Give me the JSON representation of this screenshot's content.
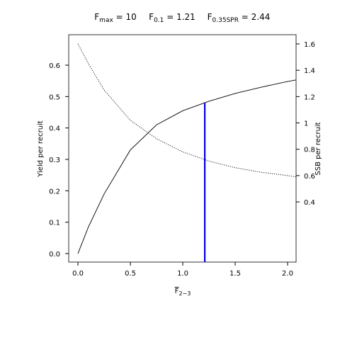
{
  "chart_data": {
    "type": "line",
    "title_items": [
      {
        "main": "F",
        "sub": "max",
        "rest": " = 10"
      },
      {
        "main": "F",
        "sub": "0.1",
        "rest": " = 1.21"
      },
      {
        "main": "F",
        "sub": "0.35SPR",
        "rest": " = 2.44"
      }
    ],
    "xlabel": {
      "main": "F",
      "sub": "2−3"
    },
    "ylabel": "Yield per recruit",
    "y2label": "SSB per recruit",
    "x": [
      0,
      0.1,
      0.25,
      0.5,
      0.75,
      1,
      1.25,
      1.5,
      1.75,
      2,
      2.081
    ],
    "series": [
      {
        "values": [
          0,
          0.085,
          0.19,
          0.33,
          0.41,
          0.455,
          0.485,
          0.51,
          0.53,
          0.548,
          0.553
        ],
        "color": "#000000",
        "dash": "solid"
      },
      {
        "values": [
          1.6,
          1.45,
          1.25,
          1.02,
          0.88,
          0.78,
          0.71,
          0.66,
          0.625,
          0.6,
          0.59
        ],
        "color": "#000000",
        "dash": "dotted",
        "axis": "y2"
      }
    ],
    "reference_line": {
      "x": 1.21,
      "y": 0.48,
      "color": "#0000ee"
    },
    "xlim": [
      -0.088,
      2.081
    ],
    "ylim": [
      -0.027,
      0.697
    ],
    "y2lim": [
      -0.057,
      1.67
    ],
    "xticks": [
      {
        "value": 0,
        "label": "0.0"
      },
      0.5,
      {
        "value": 1,
        "label": "1.0"
      },
      1.5,
      {
        "value": 2,
        "label": "2.0"
      }
    ],
    "yticks": [
      {
        "value": 0,
        "label": "0.0"
      },
      0.1,
      0.2,
      0.3,
      0.4,
      0.5,
      0.6
    ],
    "y2ticks": [
      0.4,
      0.6,
      0.8,
      1,
      1.2,
      1.4,
      1.6
    ]
  }
}
